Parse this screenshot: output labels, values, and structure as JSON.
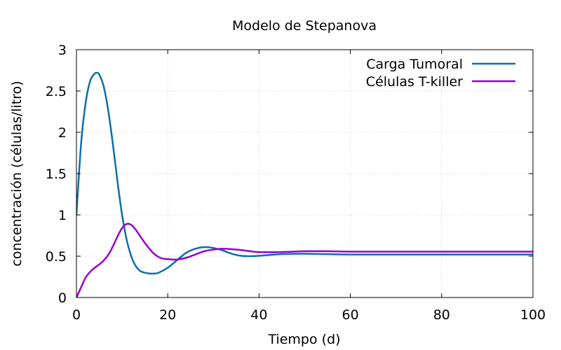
{
  "chart_data": {
    "type": "line",
    "title": "Modelo de Stepanova",
    "xlabel": "Tiempo (d)",
    "ylabel": "concentración (células/litro)",
    "xlim": [
      0,
      100
    ],
    "ylim": [
      0,
      3
    ],
    "xticks": [
      0,
      20,
      40,
      60,
      80,
      100
    ],
    "yticks": [
      0,
      0.5,
      1,
      1.5,
      2,
      2.5,
      3
    ],
    "ytick_labels": [
      "0",
      "0.5",
      "1",
      "1.5",
      "2",
      "2.5",
      "3"
    ],
    "grid": true,
    "legend_position": "top-right",
    "series": [
      {
        "name": "Carga Tumoral",
        "color": "#0a6fad",
        "x": [
          0,
          1,
          2,
          3,
          4,
          4.5,
          5,
          6,
          7,
          8,
          9,
          10,
          11,
          12,
          13,
          14,
          15,
          16,
          17,
          18,
          20,
          22,
          24,
          26,
          28,
          30,
          32,
          34,
          36,
          38,
          40,
          45,
          50,
          55,
          60,
          70,
          80,
          90,
          100
        ],
        "y": [
          1.0,
          1.85,
          2.35,
          2.62,
          2.71,
          2.72,
          2.7,
          2.55,
          2.25,
          1.85,
          1.4,
          1.0,
          0.7,
          0.5,
          0.38,
          0.32,
          0.3,
          0.29,
          0.29,
          0.3,
          0.36,
          0.45,
          0.54,
          0.59,
          0.61,
          0.6,
          0.57,
          0.53,
          0.505,
          0.5,
          0.505,
          0.525,
          0.53,
          0.525,
          0.52,
          0.52,
          0.52,
          0.52,
          0.52
        ]
      },
      {
        "name": "Células T-killer",
        "color": "#9400d3",
        "x": [
          0,
          1,
          2,
          3,
          4,
          5,
          6,
          7,
          8,
          9,
          10,
          11,
          12,
          13,
          14,
          15,
          16,
          17,
          18,
          19,
          20,
          21,
          22,
          24,
          26,
          28,
          30,
          32,
          34,
          36,
          38,
          40,
          45,
          50,
          55,
          60,
          70,
          80,
          90,
          100
        ],
        "y": [
          0.0,
          0.12,
          0.24,
          0.31,
          0.36,
          0.4,
          0.45,
          0.52,
          0.62,
          0.74,
          0.84,
          0.89,
          0.88,
          0.82,
          0.74,
          0.66,
          0.59,
          0.53,
          0.49,
          0.47,
          0.465,
          0.46,
          0.46,
          0.48,
          0.52,
          0.56,
          0.58,
          0.59,
          0.585,
          0.575,
          0.56,
          0.55,
          0.55,
          0.56,
          0.56,
          0.555,
          0.555,
          0.555,
          0.555,
          0.555
        ]
      }
    ]
  }
}
